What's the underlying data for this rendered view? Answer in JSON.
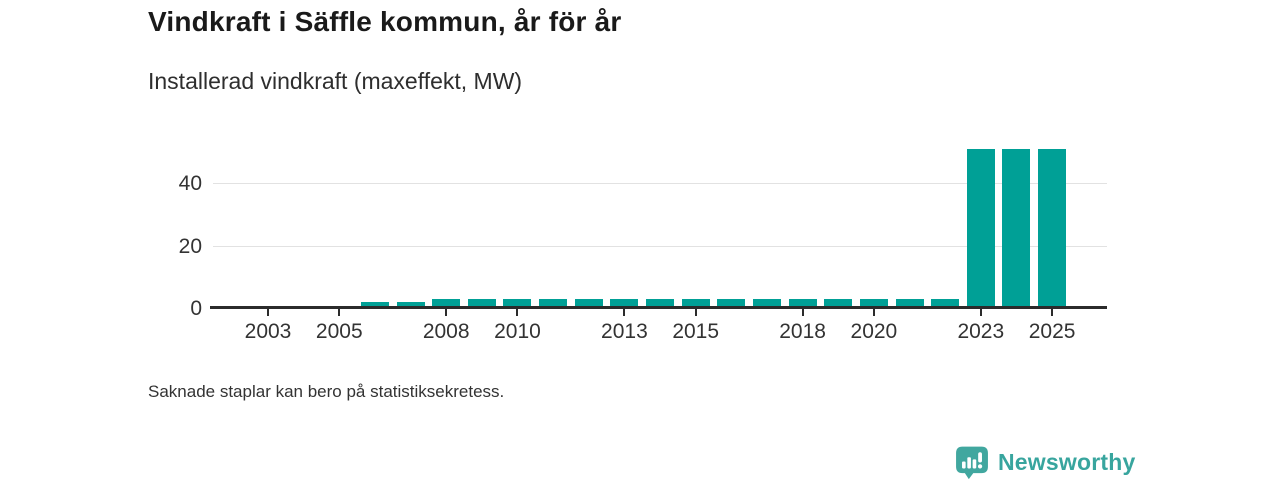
{
  "header": {
    "title": "Vindkraft i Säffle kommun, år för år",
    "subtitle": "Installerad vindkraft (maxeffekt, MW)"
  },
  "footnote": "Saknade staplar kan bero på statistiksekretess.",
  "logo": {
    "text": "Newsworthy",
    "icon": "newsworthy-chart-bubble-icon",
    "icon_color": "#41a79f",
    "text_color": "#38a59e"
  },
  "colors": {
    "bar": "#00a096",
    "axis": "#2b2b2b",
    "gridline": "#e2e2e2",
    "label_text": "#333333",
    "title_text": "#1a1a1a"
  },
  "chart_data": {
    "type": "bar",
    "title": "Vindkraft i Säffle kommun, år för år",
    "subtitle": "Installerad vindkraft (maxeffekt, MW)",
    "ylabel": "Installerad vindkraft (maxeffekt, MW)",
    "xlabel": "",
    "unit": "MW",
    "x": [
      2002,
      2003,
      2004,
      2005,
      2006,
      2007,
      2008,
      2009,
      2010,
      2011,
      2012,
      2013,
      2014,
      2015,
      2016,
      2017,
      2018,
      2019,
      2020,
      2021,
      2022,
      2023,
      2024,
      2025
    ],
    "values": [
      null,
      null,
      null,
      null,
      2,
      2,
      3,
      3,
      3,
      3,
      3,
      3,
      3,
      3,
      3,
      3,
      3,
      3,
      3,
      3,
      3,
      51,
      51,
      51
    ],
    "missing_years": [
      2002,
      2003,
      2004,
      2005
    ],
    "xticks": [
      2003,
      2005,
      2008,
      2010,
      2013,
      2015,
      2018,
      2020,
      2023,
      2025
    ],
    "yticks": [
      0,
      20,
      40
    ],
    "ylim": [
      0,
      51
    ],
    "grid": "horizontal",
    "legend": "none",
    "bar_color": "#00a096"
  }
}
